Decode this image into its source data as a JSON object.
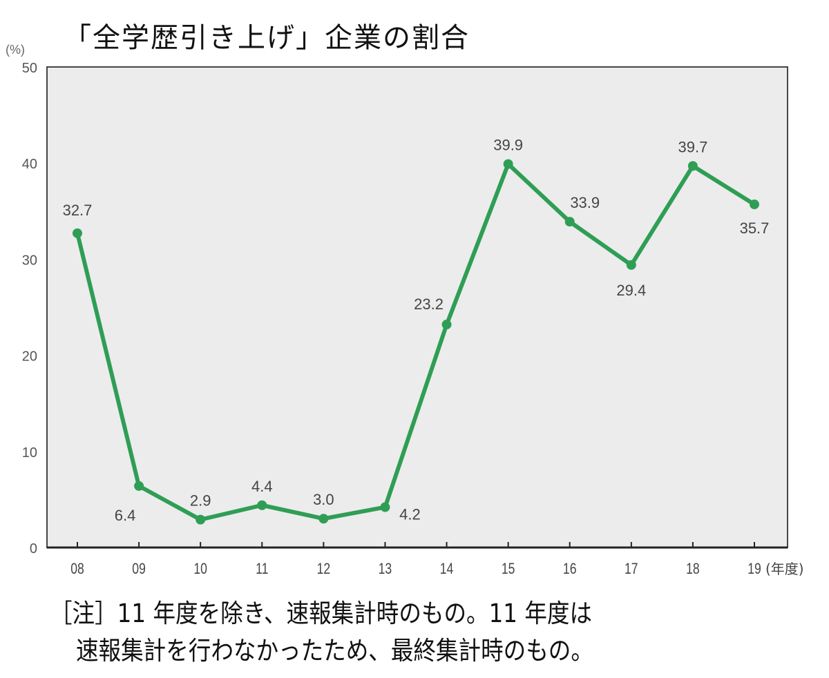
{
  "chart_data": {
    "type": "line",
    "title": "「全学歴引き上げ」企業の割合",
    "ylabel": "(%)",
    "xlabel": "(年度)",
    "categories": [
      "08",
      "09",
      "10",
      "11",
      "12",
      "13",
      "14",
      "15",
      "16",
      "17",
      "18",
      "19"
    ],
    "values": [
      32.7,
      6.4,
      2.9,
      4.4,
      3.0,
      4.2,
      23.2,
      39.9,
      33.9,
      29.4,
      39.7,
      35.7
    ],
    "value_labels": [
      "32.7",
      "6.4",
      "2.9",
      "4.4",
      "3.0",
      "4.2",
      "23.2",
      "39.9",
      "33.9",
      "29.4",
      "39.7",
      "35.7"
    ],
    "yticks": [
      0,
      10,
      20,
      30,
      40,
      50
    ],
    "ylim": [
      0,
      50
    ],
    "grid": false,
    "line_color": "#2f9e55",
    "plot_background": "#ececec"
  },
  "notes": {
    "line1": "［注］11 年度を除き、速報集計時のもの。11 年度は",
    "line2": "速報集計を行わなかったため、最終集計時のもの。"
  }
}
